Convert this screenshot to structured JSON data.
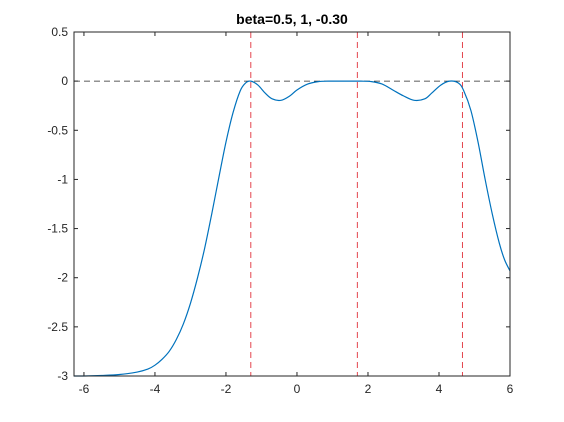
{
  "chart_data": {
    "type": "line",
    "title": "beta=0.5, 1, -0.30",
    "xlabel": "",
    "ylabel": "",
    "xlim": [
      -6.28,
      6.0
    ],
    "ylim": [
      -3,
      0.5
    ],
    "xticks": [
      -6,
      -4,
      -2,
      0,
      2,
      4,
      6
    ],
    "xtick_labels": [
      "-6",
      "-4",
      "-2",
      "0",
      "2",
      "4",
      "6"
    ],
    "yticks": [
      0.5,
      0,
      -0.5,
      -1,
      -1.5,
      -2,
      -2.5,
      -3
    ],
    "ytick_labels": [
      "0.5",
      "0",
      "-0.5",
      "-1",
      "-1.5",
      "-2",
      "-2.5",
      "-3"
    ],
    "grid": false,
    "series": [
      {
        "color": "#0072bd",
        "x": [
          -6.28,
          -6.0,
          -5.5,
          -5.0,
          -4.5,
          -4.2,
          -4.0,
          -3.8,
          -3.6,
          -3.4,
          -3.2,
          -3.0,
          -2.8,
          -2.6,
          -2.4,
          -2.2,
          -2.0,
          -1.8,
          -1.6,
          -1.45,
          -1.3,
          -1.1,
          -0.9,
          -0.7,
          -0.45,
          -0.2,
          0.0,
          0.3,
          0.6,
          0.9,
          1.2,
          1.5,
          1.8,
          2.1,
          2.4,
          2.7,
          3.0,
          3.3,
          3.6,
          3.8,
          4.05,
          4.3,
          4.55,
          4.7,
          4.9,
          5.1,
          5.3,
          5.5,
          5.7,
          5.85,
          6.0
        ],
        "y": [
          -3.0,
          -3.0,
          -2.995,
          -2.985,
          -2.96,
          -2.93,
          -2.89,
          -2.83,
          -2.75,
          -2.63,
          -2.47,
          -2.26,
          -2.0,
          -1.7,
          -1.35,
          -0.98,
          -0.62,
          -0.32,
          -0.1,
          -0.02,
          0.0,
          -0.04,
          -0.12,
          -0.18,
          -0.195,
          -0.15,
          -0.09,
          -0.03,
          -0.005,
          0.0,
          0.0,
          0.0,
          0.0,
          -0.005,
          -0.03,
          -0.09,
          -0.15,
          -0.195,
          -0.18,
          -0.12,
          -0.04,
          0.0,
          -0.02,
          -0.1,
          -0.3,
          -0.62,
          -1.0,
          -1.35,
          -1.65,
          -1.82,
          -1.93
        ]
      }
    ],
    "hlines": [
      {
        "y": 0,
        "style": "dashed",
        "color": "#262626"
      }
    ],
    "vlines": [
      {
        "x": -1.3,
        "style": "dashed",
        "color": "#e0303a"
      },
      {
        "x": 1.7,
        "style": "dashed",
        "color": "#e0303a"
      },
      {
        "x": 4.66,
        "style": "dashed",
        "color": "#e0303a"
      }
    ]
  }
}
